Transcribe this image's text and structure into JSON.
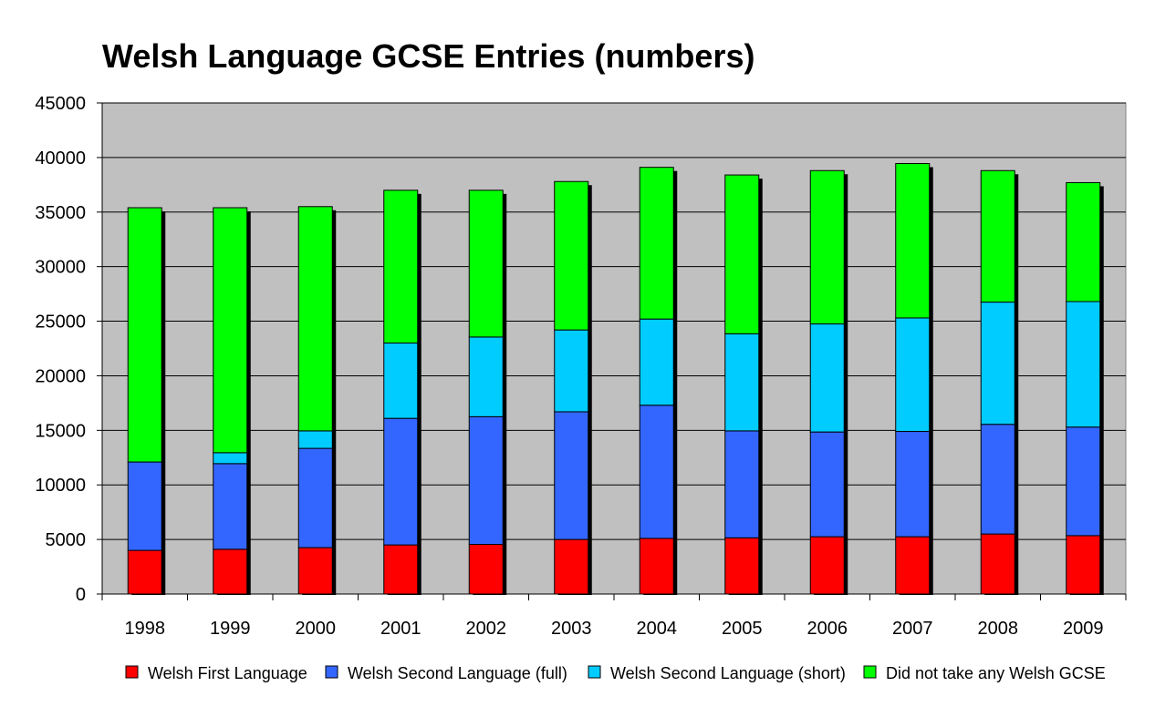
{
  "chart_data": {
    "type": "bar",
    "stacked": true,
    "title": "Welsh Language GCSE Entries (numbers)",
    "xlabel": "",
    "ylabel": "",
    "ylim": [
      0,
      45000
    ],
    "yticks": [
      "0",
      "5000",
      "10000",
      "15000",
      "20000",
      "25000",
      "30000",
      "35000",
      "40000",
      "45000"
    ],
    "grid": true,
    "legend_position": "bottom",
    "categories": [
      "1998",
      "1999",
      "2000",
      "2001",
      "2002",
      "2003",
      "2004",
      "2005",
      "2006",
      "2007",
      "2008",
      "2009"
    ],
    "series": [
      {
        "name": "Welsh First Language",
        "color": "#ff0000",
        "values": [
          4000,
          4100,
          4250,
          4500,
          4550,
          5000,
          5100,
          5150,
          5250,
          5250,
          5500,
          5350
        ]
      },
      {
        "name": "Welsh Second Language (full)",
        "color": "#3366ff",
        "values": [
          8100,
          7850,
          9100,
          11600,
          11700,
          11700,
          12200,
          9800,
          9600,
          9650,
          10050,
          9950
        ]
      },
      {
        "name": "Welsh Second Language (short)",
        "color": "#00ccff",
        "values": [
          0,
          1000,
          1600,
          6900,
          7300,
          7500,
          7900,
          8900,
          9900,
          10400,
          11200,
          11500
        ]
      },
      {
        "name": "Did not take any Welsh GCSE",
        "color": "#00ff00",
        "values": [
          23300,
          22450,
          20550,
          14000,
          13450,
          13600,
          13900,
          14550,
          14050,
          14150,
          12050,
          10900
        ]
      }
    ],
    "plot_background": "#c0c0c0",
    "gridline_color": "#000000"
  }
}
